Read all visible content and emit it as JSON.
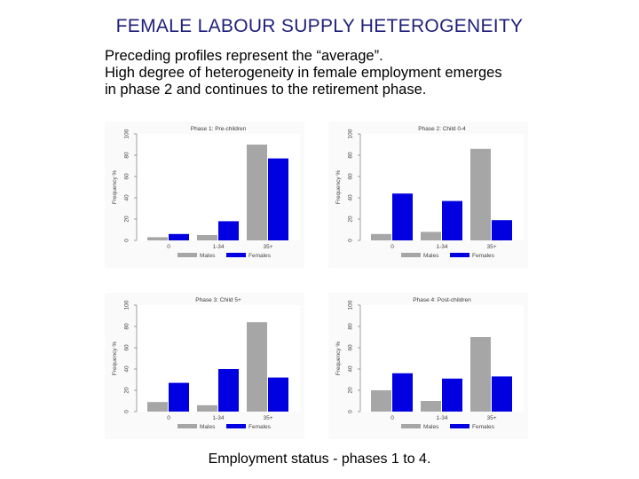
{
  "slide": {
    "title": "FEMALE LABOUR SUPPLY HETEROGENEITY",
    "lines": [
      "Preceding profiles represent the “average”.",
      "High degree of heterogeneity in female employment emerges",
      "in phase 2 and continues to the retirement phase."
    ],
    "caption": "Employment status - phases 1 to 4."
  },
  "colors": {
    "males": "#a6a6a6",
    "females": "#0000e0"
  },
  "chart_data": [
    {
      "type": "bar",
      "title": "Phase 1: Pre-children",
      "categories": [
        "0",
        "1-34",
        "35+"
      ],
      "series": [
        {
          "name": "Males",
          "values": [
            3,
            5,
            90
          ]
        },
        {
          "name": "Females",
          "values": [
            6,
            18,
            77
          ]
        }
      ],
      "ylabel": "Frequency %",
      "yticks": [
        "0",
        "20",
        "40",
        "60",
        "80",
        "100"
      ],
      "ylim": [
        0,
        100
      ],
      "legend": "bottom"
    },
    {
      "type": "bar",
      "title": "Phase 2: Child 0-4",
      "categories": [
        "0",
        "1-34",
        "35+"
      ],
      "series": [
        {
          "name": "Males",
          "values": [
            6,
            8,
            86
          ]
        },
        {
          "name": "Females",
          "values": [
            44,
            37,
            19
          ]
        }
      ],
      "ylabel": "Frequency %",
      "yticks": [
        "0",
        "20",
        "40",
        "60",
        "80",
        "100"
      ],
      "ylim": [
        0,
        100
      ],
      "legend": "bottom"
    },
    {
      "type": "bar",
      "title": "Phase 3: Child 5+",
      "categories": [
        "0",
        "1-34",
        "35+"
      ],
      "series": [
        {
          "name": "Males",
          "values": [
            9,
            6,
            84
          ]
        },
        {
          "name": "Females",
          "values": [
            27,
            40,
            32
          ]
        }
      ],
      "ylabel": "Frequency %",
      "yticks": [
        "0",
        "20",
        "40",
        "60",
        "80",
        "100"
      ],
      "ylim": [
        0,
        100
      ],
      "legend": "bottom"
    },
    {
      "type": "bar",
      "title": "Phase 4: Post-children",
      "categories": [
        "0",
        "1-34",
        "35+"
      ],
      "series": [
        {
          "name": "Males",
          "values": [
            20,
            10,
            70
          ]
        },
        {
          "name": "Females",
          "values": [
            36,
            31,
            33
          ]
        }
      ],
      "ylabel": "Frequency %",
      "yticks": [
        "0",
        "20",
        "40",
        "60",
        "80",
        "100"
      ],
      "ylim": [
        0,
        100
      ],
      "legend": "bottom"
    }
  ]
}
